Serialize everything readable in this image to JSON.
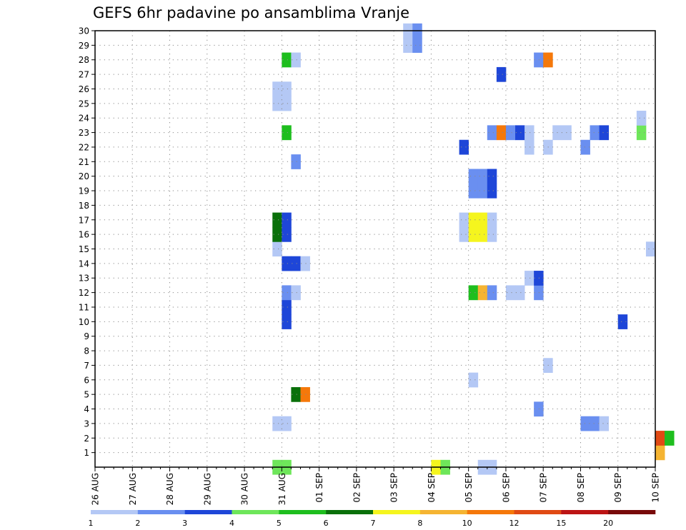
{
  "chart_data": {
    "type": "heatmap",
    "title": "GEFS 6hr padavine po ansamblima Vranje",
    "xlabel": "",
    "ylabel": "",
    "x_ticks": [
      "26 AUG",
      "27 AUG",
      "28 AUG",
      "29 AUG",
      "30 AUG",
      "31 AUG",
      "01 SEP",
      "02 SEP",
      "03 SEP",
      "04 SEP",
      "05 SEP",
      "06 SEP",
      "07 SEP",
      "08 SEP",
      "09 SEP",
      "10 SEP"
    ],
    "x_range_steps": [
      0,
      60
    ],
    "x_step_hours": 6,
    "y_ticks": [
      1,
      2,
      3,
      4,
      5,
      6,
      7,
      8,
      9,
      10,
      11,
      12,
      13,
      14,
      15,
      16,
      17,
      18,
      19,
      20,
      21,
      22,
      23,
      24,
      25,
      26,
      27,
      28,
      29,
      30
    ],
    "y_range": [
      0,
      30
    ],
    "grid": true,
    "colorbar": {
      "levels": [
        "1",
        "2",
        "3",
        "4",
        "5",
        "6",
        "7",
        "8",
        "10",
        "12",
        "15",
        "20"
      ],
      "colors": [
        "#b4c8f5",
        "#6a8ff0",
        "#1e46d8",
        "#6ee65a",
        "#1ebe1e",
        "#0a700a",
        "#f5f51e",
        "#f5b432",
        "#f5780a",
        "#e04a14",
        "#bc1414",
        "#780a0a"
      ]
    },
    "cells": [
      {
        "m": 0,
        "s": 19,
        "c": 4
      },
      {
        "m": 0,
        "s": 20,
        "c": 4
      },
      {
        "m": 0,
        "s": 36,
        "c": 7
      },
      {
        "m": 0,
        "s": 37,
        "c": 4
      },
      {
        "m": 0,
        "s": 41,
        "c": 1
      },
      {
        "m": 0,
        "s": 42,
        "c": 1
      },
      {
        "m": 1,
        "s": 60,
        "c": 8
      },
      {
        "m": 2,
        "s": 60,
        "c": 10
      },
      {
        "m": 2,
        "s": 61,
        "c": 5
      },
      {
        "m": 3,
        "s": 19,
        "c": 1
      },
      {
        "m": 3,
        "s": 20,
        "c": 1
      },
      {
        "m": 3,
        "s": 52,
        "c": 2
      },
      {
        "m": 3,
        "s": 53,
        "c": 2
      },
      {
        "m": 3,
        "s": 54,
        "c": 1
      },
      {
        "m": 4,
        "s": 47,
        "c": 2
      },
      {
        "m": 5,
        "s": 21,
        "c": 6
      },
      {
        "m": 5,
        "s": 22,
        "c": 9
      },
      {
        "m": 6,
        "s": 40,
        "c": 1
      },
      {
        "m": 7,
        "s": 48,
        "c": 1
      },
      {
        "m": 10,
        "s": 20,
        "c": 3
      },
      {
        "m": 10,
        "s": 56,
        "c": 3
      },
      {
        "m": 11,
        "s": 20,
        "c": 3
      },
      {
        "m": 12,
        "s": 20,
        "c": 2
      },
      {
        "m": 12,
        "s": 21,
        "c": 1
      },
      {
        "m": 12,
        "s": 40,
        "c": 5
      },
      {
        "m": 12,
        "s": 41,
        "c": 8
      },
      {
        "m": 12,
        "s": 42,
        "c": 2
      },
      {
        "m": 12,
        "s": 44,
        "c": 1
      },
      {
        "m": 12,
        "s": 45,
        "c": 1
      },
      {
        "m": 12,
        "s": 47,
        "c": 2
      },
      {
        "m": 13,
        "s": 46,
        "c": 1
      },
      {
        "m": 13,
        "s": 47,
        "c": 3
      },
      {
        "m": 14,
        "s": 20,
        "c": 3
      },
      {
        "m": 14,
        "s": 21,
        "c": 3
      },
      {
        "m": 14,
        "s": 22,
        "c": 1
      },
      {
        "m": 15,
        "s": 19,
        "c": 1
      },
      {
        "m": 15,
        "s": 59,
        "c": 1
      },
      {
        "m": 16,
        "s": 19,
        "c": 6
      },
      {
        "m": 16,
        "s": 20,
        "c": 3
      },
      {
        "m": 16,
        "s": 39,
        "c": 1
      },
      {
        "m": 16,
        "s": 40,
        "c": 7
      },
      {
        "m": 16,
        "s": 41,
        "c": 7
      },
      {
        "m": 16,
        "s": 42,
        "c": 1
      },
      {
        "m": 17,
        "s": 19,
        "c": 6
      },
      {
        "m": 17,
        "s": 20,
        "c": 3
      },
      {
        "m": 17,
        "s": 39,
        "c": 1
      },
      {
        "m": 17,
        "s": 40,
        "c": 7
      },
      {
        "m": 17,
        "s": 41,
        "c": 7
      },
      {
        "m": 17,
        "s": 42,
        "c": 1
      },
      {
        "m": 19,
        "s": 40,
        "c": 2
      },
      {
        "m": 19,
        "s": 41,
        "c": 2
      },
      {
        "m": 19,
        "s": 42,
        "c": 3
      },
      {
        "m": 20,
        "s": 40,
        "c": 2
      },
      {
        "m": 20,
        "s": 41,
        "c": 2
      },
      {
        "m": 20,
        "s": 42,
        "c": 3
      },
      {
        "m": 21,
        "s": 21,
        "c": 2
      },
      {
        "m": 22,
        "s": 39,
        "c": 3
      },
      {
        "m": 22,
        "s": 46,
        "c": 1
      },
      {
        "m": 22,
        "s": 48,
        "c": 1
      },
      {
        "m": 22,
        "s": 52,
        "c": 2
      },
      {
        "m": 23,
        "s": 20,
        "c": 5
      },
      {
        "m": 23,
        "s": 42,
        "c": 2
      },
      {
        "m": 23,
        "s": 43,
        "c": 9
      },
      {
        "m": 23,
        "s": 44,
        "c": 2
      },
      {
        "m": 23,
        "s": 45,
        "c": 3
      },
      {
        "m": 23,
        "s": 46,
        "c": 1
      },
      {
        "m": 23,
        "s": 49,
        "c": 1
      },
      {
        "m": 23,
        "s": 50,
        "c": 1
      },
      {
        "m": 23,
        "s": 53,
        "c": 2
      },
      {
        "m": 23,
        "s": 54,
        "c": 3
      },
      {
        "m": 23,
        "s": 58,
        "c": 4
      },
      {
        "m": 24,
        "s": 58,
        "c": 1
      },
      {
        "m": 25,
        "s": 19,
        "c": 1
      },
      {
        "m": 25,
        "s": 20,
        "c": 1
      },
      {
        "m": 26,
        "s": 19,
        "c": 1
      },
      {
        "m": 26,
        "s": 20,
        "c": 1
      },
      {
        "m": 27,
        "s": 43,
        "c": 3
      },
      {
        "m": 28,
        "s": 20,
        "c": 5
      },
      {
        "m": 28,
        "s": 21,
        "c": 1
      },
      {
        "m": 28,
        "s": 47,
        "c": 2
      },
      {
        "m": 28,
        "s": 48,
        "c": 9
      },
      {
        "m": 29,
        "s": 33,
        "c": 1
      },
      {
        "m": 29,
        "s": 34,
        "c": 2
      },
      {
        "m": 30,
        "s": 33,
        "c": 1
      },
      {
        "m": 30,
        "s": 34,
        "c": 2
      }
    ]
  }
}
